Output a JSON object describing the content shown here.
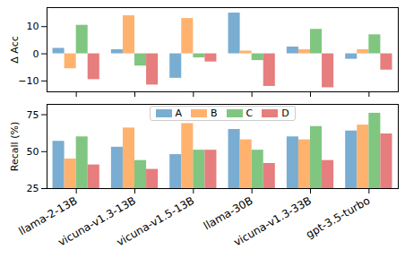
{
  "chart_data": [
    {
      "type": "bar",
      "y_label": "Δ Acc",
      "categories": [
        "llama-2-13B",
        "vicuna-v1.3-13B",
        "vicuna-v1.5-13B",
        "llama-30B",
        "vicuna-v1.3-33B",
        "gpt-3.5-turbo"
      ],
      "series": [
        {
          "name": "A",
          "color": "#79add2",
          "values": [
            2,
            1.5,
            -9,
            15,
            2.5,
            -2
          ]
        },
        {
          "name": "B",
          "color": "#ffb26e",
          "values": [
            -5.5,
            14,
            13,
            1,
            1.5,
            1.5
          ]
        },
        {
          "name": "C",
          "color": "#80c680",
          "values": [
            10.5,
            -4.5,
            -1.5,
            -2.5,
            9,
            7
          ]
        },
        {
          "name": "D",
          "color": "#e67d7e",
          "values": [
            -9.5,
            -11.5,
            -3,
            -12,
            -12.5,
            -6
          ]
        }
      ],
      "ylim": [
        -14,
        17
      ],
      "yticks": [
        -10,
        0,
        10
      ],
      "tick_labels": "y"
    },
    {
      "type": "bar",
      "y_label": "Recall (%)",
      "categories": [
        "llama-2-13B",
        "vicuna-v1.3-13B",
        "vicuna-v1.5-13B",
        "llama-30B",
        "vicuna-v1.3-33B",
        "gpt-3.5-turbo"
      ],
      "series": [
        {
          "name": "A",
          "color": "#79add2",
          "values": [
            57,
            53,
            48,
            65,
            60,
            64
          ]
        },
        {
          "name": "B",
          "color": "#ffb26e",
          "values": [
            45,
            66,
            69,
            58,
            58,
            68
          ]
        },
        {
          "name": "C",
          "color": "#80c680",
          "values": [
            60,
            44,
            51,
            51,
            67,
            76
          ]
        },
        {
          "name": "D",
          "color": "#e67d7e",
          "values": [
            41,
            38,
            51,
            42,
            44,
            62
          ]
        }
      ],
      "ylim": [
        25,
        82
      ],
      "yticks": [
        25,
        50,
        75
      ],
      "legend": "top"
    }
  ]
}
